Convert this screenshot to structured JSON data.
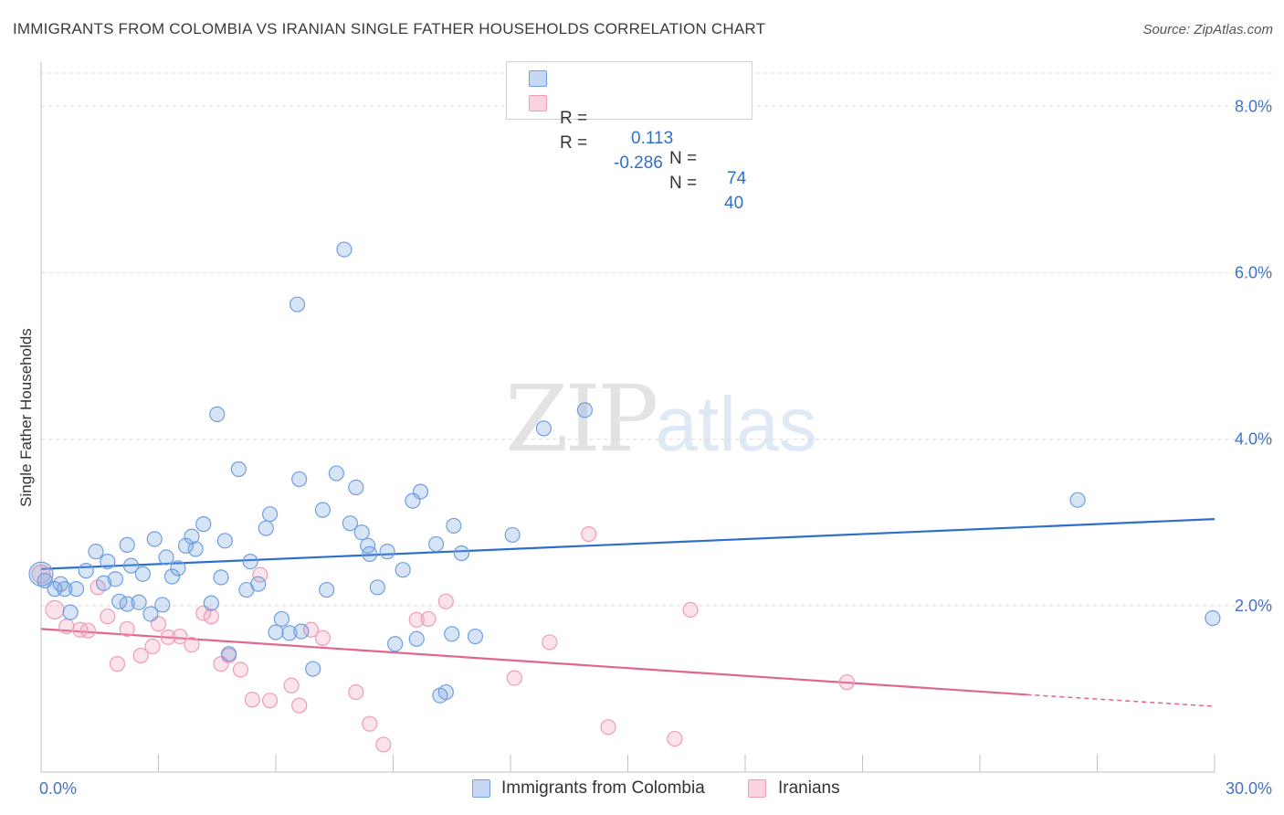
{
  "title": "IMMIGRANTS FROM COLOMBIA VS IRANIAN SINGLE FATHER HOUSEHOLDS CORRELATION CHART",
  "source": "Source: ZipAtlas.com",
  "watermark": {
    "zip": "ZIP",
    "atlas": "atlas"
  },
  "colors": {
    "blue": "#6f9fe0",
    "blue_line": "#2f6fcc",
    "pink": "#f19bb8",
    "pink_line": "#e06690"
  },
  "legend": {
    "r_label": "R =",
    "n_label": "N =",
    "rows": [
      {
        "r": "0.113",
        "n": "74"
      },
      {
        "r": "-0.286",
        "n": "40"
      }
    ]
  },
  "bottom_legend": [
    "Immigrants from Colombia",
    "Iranians"
  ],
  "chart_data": {
    "type": "scatter",
    "title": "IMMIGRANTS FROM COLOMBIA VS IRANIAN SINGLE FATHER HOUSEHOLDS CORRELATION CHART",
    "xlabel": "",
    "ylabel": "Single Father Households",
    "xlim": [
      0,
      30
    ],
    "ylim": [
      0,
      8.4
    ],
    "x_tick_labels": [
      "0.0%",
      "30.0%"
    ],
    "y_tick_labels": [
      "2.0%",
      "4.0%",
      "6.0%",
      "8.0%"
    ],
    "y_ticks": [
      2,
      4,
      6,
      8
    ],
    "grid": "horizontal dashed",
    "series": [
      {
        "name": "Immigrants from Colombia",
        "r": 0.113,
        "n": 74,
        "trend": [
          [
            0,
            2.44
          ],
          [
            30,
            3.04
          ]
        ],
        "points": [
          [
            0.0,
            2.38
          ],
          [
            0.1,
            2.3
          ],
          [
            0.35,
            2.2
          ],
          [
            0.5,
            2.26
          ],
          [
            0.6,
            2.2
          ],
          [
            0.75,
            1.92
          ],
          [
            0.9,
            2.2
          ],
          [
            1.15,
            2.42
          ],
          [
            1.4,
            2.65
          ],
          [
            1.6,
            2.27
          ],
          [
            1.7,
            2.53
          ],
          [
            1.9,
            2.32
          ],
          [
            2.0,
            2.05
          ],
          [
            2.2,
            2.02
          ],
          [
            2.2,
            2.73
          ],
          [
            2.3,
            2.48
          ],
          [
            2.5,
            2.04
          ],
          [
            2.6,
            2.38
          ],
          [
            2.8,
            1.9
          ],
          [
            2.9,
            2.8
          ],
          [
            3.1,
            2.01
          ],
          [
            3.2,
            2.58
          ],
          [
            3.35,
            2.35
          ],
          [
            3.5,
            2.45
          ],
          [
            3.7,
            2.72
          ],
          [
            3.85,
            2.83
          ],
          [
            3.95,
            2.68
          ],
          [
            4.15,
            2.98
          ],
          [
            4.35,
            2.03
          ],
          [
            4.5,
            4.3
          ],
          [
            4.6,
            2.34
          ],
          [
            4.7,
            2.78
          ],
          [
            4.8,
            1.42
          ],
          [
            5.05,
            3.64
          ],
          [
            5.25,
            2.19
          ],
          [
            5.35,
            2.53
          ],
          [
            5.55,
            2.26
          ],
          [
            5.75,
            2.93
          ],
          [
            5.85,
            3.1
          ],
          [
            6.0,
            1.68
          ],
          [
            6.15,
            1.84
          ],
          [
            6.35,
            1.67
          ],
          [
            6.55,
            5.62
          ],
          [
            6.6,
            3.52
          ],
          [
            6.65,
            1.69
          ],
          [
            6.95,
            1.24
          ],
          [
            7.2,
            3.15
          ],
          [
            7.3,
            2.19
          ],
          [
            7.55,
            3.59
          ],
          [
            7.75,
            6.28
          ],
          [
            7.9,
            2.99
          ],
          [
            8.05,
            3.42
          ],
          [
            8.2,
            2.88
          ],
          [
            8.35,
            2.72
          ],
          [
            8.4,
            2.62
          ],
          [
            8.6,
            2.22
          ],
          [
            8.85,
            2.65
          ],
          [
            9.05,
            1.54
          ],
          [
            9.25,
            2.43
          ],
          [
            9.5,
            3.26
          ],
          [
            9.6,
            1.6
          ],
          [
            9.7,
            3.37
          ],
          [
            10.1,
            2.74
          ],
          [
            10.2,
            0.92
          ],
          [
            10.35,
            0.96
          ],
          [
            10.5,
            1.66
          ],
          [
            10.55,
            2.96
          ],
          [
            10.75,
            2.63
          ],
          [
            11.1,
            1.63
          ],
          [
            12.05,
            2.85
          ],
          [
            12.85,
            4.13
          ],
          [
            13.9,
            4.35
          ],
          [
            26.5,
            3.27
          ],
          [
            29.95,
            1.85
          ]
        ]
      },
      {
        "name": "Iranians",
        "r": -0.286,
        "n": 40,
        "trend": [
          [
            0,
            1.72
          ],
          [
            25.2,
            0.93
          ]
        ],
        "trend_dashed": [
          [
            25.2,
            0.93
          ],
          [
            30,
            0.79
          ]
        ],
        "points": [
          [
            0.0,
            2.38
          ],
          [
            0.35,
            1.95
          ],
          [
            0.65,
            1.75
          ],
          [
            1.0,
            1.71
          ],
          [
            1.2,
            1.7
          ],
          [
            1.45,
            2.22
          ],
          [
            1.7,
            1.87
          ],
          [
            1.95,
            1.3
          ],
          [
            2.2,
            1.72
          ],
          [
            2.55,
            1.4
          ],
          [
            2.85,
            1.51
          ],
          [
            3.0,
            1.78
          ],
          [
            3.25,
            1.62
          ],
          [
            3.55,
            1.63
          ],
          [
            3.85,
            1.53
          ],
          [
            4.15,
            1.91
          ],
          [
            4.35,
            1.87
          ],
          [
            4.6,
            1.3
          ],
          [
            4.8,
            1.4
          ],
          [
            5.1,
            1.23
          ],
          [
            5.4,
            0.87
          ],
          [
            5.6,
            2.37
          ],
          [
            5.85,
            0.86
          ],
          [
            6.4,
            1.04
          ],
          [
            6.6,
            0.8
          ],
          [
            6.9,
            1.71
          ],
          [
            7.2,
            1.61
          ],
          [
            8.05,
            0.96
          ],
          [
            8.4,
            0.58
          ],
          [
            8.75,
            0.33
          ],
          [
            9.6,
            1.83
          ],
          [
            9.9,
            1.84
          ],
          [
            10.35,
            2.05
          ],
          [
            12.1,
            1.13
          ],
          [
            13.0,
            1.56
          ],
          [
            14.0,
            2.86
          ],
          [
            14.5,
            0.54
          ],
          [
            16.2,
            0.4
          ],
          [
            16.6,
            1.95
          ],
          [
            20.6,
            1.08
          ]
        ]
      }
    ]
  }
}
